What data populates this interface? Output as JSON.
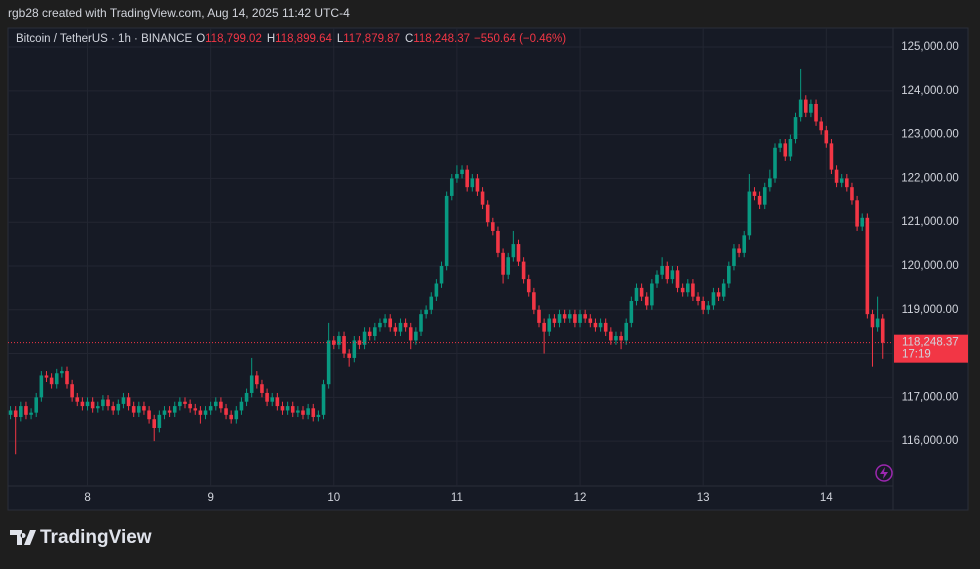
{
  "header": {
    "caption": "rgb28 created with TradingView.com, Aug 14, 2025 11:42 UTC-4"
  },
  "footer": {
    "logo_text": "TradingView"
  },
  "chart_data": {
    "type": "candlestick",
    "symbol": "Bitcoin / TetherUS · 1h · BINANCE",
    "ohlc_legend": [
      {
        "key": "O",
        "value": "118,799.02"
      },
      {
        "key": "H",
        "value": "118,899.64"
      },
      {
        "key": "L",
        "value": "117,879.87"
      },
      {
        "key": "C",
        "value": "118,248.37"
      }
    ],
    "change": "−550.64 (−0.46%)",
    "up_color": "#089981",
    "down_color": "#f23645",
    "grid": true,
    "open": [
      116600,
      116700,
      116550,
      116800,
      116600,
      116650,
      117000,
      117500,
      117450,
      117300,
      117550,
      117600,
      117300,
      117000,
      116900,
      116800,
      116900,
      116750,
      116800,
      116950,
      116800,
      116700,
      116850,
      117000,
      116800,
      116650,
      116800,
      116700,
      116500,
      116300,
      116600,
      116700,
      116650,
      116800,
      116900,
      116850,
      116750,
      116700,
      116600,
      116700,
      116800,
      116900,
      116750,
      116600,
      116500,
      116700,
      116900,
      117100,
      117500,
      117300,
      117100,
      116900,
      117000,
      116800,
      116700,
      116800,
      116650,
      116700,
      116600,
      116750,
      116550,
      116600,
      117300,
      118300,
      118200,
      118400,
      118000,
      117900,
      118300,
      118200,
      118500,
      118400,
      118600,
      118700,
      118800,
      118600,
      118500,
      118700,
      118600,
      118300,
      118500,
      118900,
      119000,
      119300,
      119600,
      120000,
      121600,
      122000,
      122100,
      122200,
      121800,
      122000,
      121700,
      121400,
      121000,
      120800,
      120300,
      119800,
      120200,
      120500,
      120100,
      119700,
      119400,
      119000,
      118700,
      118500,
      118800,
      118700,
      118900,
      118800,
      118900,
      118700,
      118900,
      118800,
      118700,
      118600,
      118700,
      118500,
      118300,
      118400,
      118300,
      118700,
      119200,
      119500,
      119300,
      119100,
      119600,
      119800,
      120000,
      119700,
      119900,
      119500,
      119400,
      119600,
      119300,
      119200,
      119000,
      119100,
      119400,
      119300,
      119600,
      120000,
      120400,
      120300,
      120700,
      121700,
      121600,
      121400,
      121800,
      122000,
      122700,
      122800,
      122500,
      122900,
      123400,
      123800,
      123500,
      123700,
      123300,
      123100,
      122800,
      122200,
      121900,
      122000,
      121800,
      121500,
      120900,
      121100,
      118900,
      118600,
      118799.02
    ],
    "high": [
      116800,
      116800,
      116900,
      116900,
      116750,
      117100,
      117600,
      117600,
      117550,
      117650,
      117700,
      117700,
      117400,
      117100,
      117000,
      117000,
      117000,
      116900,
      117050,
      117050,
      116900,
      116950,
      117100,
      117100,
      116900,
      116900,
      116900,
      116800,
      116600,
      116700,
      116800,
      116800,
      116900,
      117000,
      117000,
      116950,
      116850,
      116800,
      116800,
      116900,
      117000,
      117000,
      116850,
      116700,
      116800,
      117000,
      117200,
      117900,
      117600,
      117400,
      117200,
      117100,
      117100,
      116900,
      116900,
      116900,
      116800,
      116800,
      116850,
      116850,
      116700,
      117400,
      118700,
      118400,
      118500,
      118500,
      118100,
      118400,
      118400,
      118600,
      118600,
      118700,
      118800,
      118900,
      118900,
      118700,
      118800,
      118800,
      118700,
      118600,
      119000,
      119100,
      119400,
      119700,
      120100,
      121700,
      122100,
      122300,
      122300,
      122300,
      122100,
      122100,
      121800,
      121500,
      121100,
      120900,
      120400,
      120300,
      120800,
      120600,
      120200,
      119800,
      119500,
      119100,
      118800,
      118900,
      118900,
      119000,
      119000,
      119000,
      119000,
      119000,
      119000,
      118900,
      118800,
      118800,
      118800,
      118600,
      118500,
      118500,
      118800,
      119300,
      119600,
      119600,
      119400,
      119700,
      119900,
      120200,
      120100,
      120000,
      120000,
      119600,
      119700,
      119700,
      119400,
      119300,
      119200,
      119500,
      119500,
      119700,
      120100,
      120500,
      120500,
      120800,
      122100,
      121800,
      121700,
      121900,
      122200,
      122800,
      122900,
      122900,
      123000,
      123500,
      124500,
      123900,
      123800,
      123800,
      123400,
      123200,
      122900,
      122300,
      122100,
      122100,
      121900,
      121600,
      121200,
      121200,
      119000,
      119300,
      118899.64
    ],
    "low": [
      116500,
      115700,
      116450,
      116500,
      116500,
      116550,
      116900,
      117350,
      117200,
      117200,
      117450,
      117200,
      116900,
      116800,
      116700,
      116700,
      116650,
      116650,
      116700,
      116700,
      116600,
      116600,
      116750,
      116700,
      116550,
      116550,
      116600,
      116400,
      116000,
      116200,
      116500,
      116550,
      116550,
      116700,
      116750,
      116650,
      116600,
      116400,
      116500,
      116600,
      116700,
      116650,
      116500,
      116400,
      116400,
      116600,
      116800,
      117000,
      117200,
      117000,
      116800,
      116800,
      116700,
      116600,
      116600,
      116550,
      116550,
      116500,
      116500,
      116450,
      116450,
      116500,
      117200,
      118100,
      118100,
      117900,
      117700,
      117800,
      118100,
      118100,
      118300,
      118300,
      118500,
      118600,
      118500,
      118400,
      118400,
      118500,
      118100,
      118200,
      118400,
      118800,
      118900,
      119200,
      119500,
      119900,
      121500,
      121900,
      122000,
      121700,
      121700,
      121600,
      121300,
      120900,
      120700,
      120200,
      119600,
      119700,
      120100,
      120000,
      119600,
      119300,
      118900,
      118600,
      118000,
      118400,
      118600,
      118600,
      118700,
      118700,
      118600,
      118600,
      118700,
      118600,
      118500,
      118500,
      118400,
      118200,
      118200,
      118100,
      118200,
      118600,
      119100,
      119200,
      119000,
      119000,
      119500,
      119700,
      119600,
      119600,
      119400,
      119300,
      119300,
      119200,
      119100,
      118900,
      118900,
      119000,
      119200,
      119200,
      119500,
      119900,
      120200,
      120200,
      120600,
      121500,
      121300,
      121300,
      121700,
      121900,
      122600,
      122400,
      122400,
      122800,
      123300,
      123400,
      123400,
      123200,
      123000,
      122700,
      122100,
      121800,
      121800,
      121700,
      121400,
      120800,
      120800,
      118800,
      117700,
      118500,
      117879.87
    ],
    "close": [
      116700,
      116550,
      116800,
      116600,
      116650,
      117000,
      117500,
      117450,
      117300,
      117550,
      117600,
      117300,
      117000,
      116900,
      116800,
      116900,
      116750,
      116800,
      116950,
      116800,
      116700,
      116850,
      117000,
      116800,
      116650,
      116800,
      116700,
      116500,
      116300,
      116600,
      116700,
      116650,
      116800,
      116900,
      116850,
      116750,
      116700,
      116600,
      116700,
      116800,
      116900,
      116750,
      116600,
      116500,
      116700,
      116900,
      117100,
      117500,
      117300,
      117100,
      116900,
      117000,
      116800,
      116700,
      116800,
      116650,
      116700,
      116600,
      116750,
      116550,
      116600,
      117300,
      118300,
      118200,
      118400,
      118000,
      117900,
      118300,
      118200,
      118500,
      118400,
      118600,
      118700,
      118800,
      118600,
      118500,
      118700,
      118600,
      118300,
      118500,
      118900,
      119000,
      119300,
      119600,
      120000,
      121600,
      122000,
      122100,
      122200,
      121800,
      122000,
      121700,
      121400,
      121000,
      120800,
      120300,
      119800,
      120200,
      120500,
      120100,
      119700,
      119400,
      119000,
      118700,
      118500,
      118800,
      118700,
      118900,
      118800,
      118900,
      118700,
      118900,
      118800,
      118700,
      118600,
      118700,
      118500,
      118300,
      118400,
      118300,
      118700,
      119200,
      119500,
      119300,
      119100,
      119600,
      119800,
      120000,
      119700,
      119900,
      119500,
      119400,
      119600,
      119300,
      119200,
      119000,
      119100,
      119400,
      119300,
      119600,
      120000,
      120400,
      120300,
      120700,
      121700,
      121600,
      121400,
      121800,
      122000,
      122700,
      122800,
      122500,
      122900,
      123400,
      123800,
      123500,
      123700,
      123300,
      123100,
      122800,
      122200,
      121900,
      122000,
      121800,
      121500,
      120900,
      121100,
      118900,
      118600,
      118799.02,
      118248.37
    ],
    "xlim": [
      -0.5,
      172
    ],
    "xticks": [
      {
        "value": 15,
        "label": "8"
      },
      {
        "value": 39,
        "label": "9"
      },
      {
        "value": 63,
        "label": "10"
      },
      {
        "value": 87,
        "label": "11"
      },
      {
        "value": 111,
        "label": "12"
      },
      {
        "value": 135,
        "label": "13"
      },
      {
        "value": 159,
        "label": "14"
      }
    ],
    "ylim": [
      114975,
      125435
    ],
    "yticks": [
      {
        "value": 116000,
        "label": "116,000.00"
      },
      {
        "value": 117000,
        "label": "117,000.00"
      },
      {
        "value": 118000,
        "label": "118,000.00"
      },
      {
        "value": 119000,
        "label": "119,000.00"
      },
      {
        "value": 120000,
        "label": "120,000.00"
      },
      {
        "value": 121000,
        "label": "121,000.00"
      },
      {
        "value": 122000,
        "label": "122,000.00"
      },
      {
        "value": 123000,
        "label": "123,000.00"
      },
      {
        "value": 124000,
        "label": "124,000.00"
      },
      {
        "value": 125000,
        "label": "125,000.00"
      }
    ],
    "price_line": {
      "value": 118248.37,
      "label": "118,248.37",
      "countdown": "17:19",
      "color": "#f23645"
    }
  }
}
